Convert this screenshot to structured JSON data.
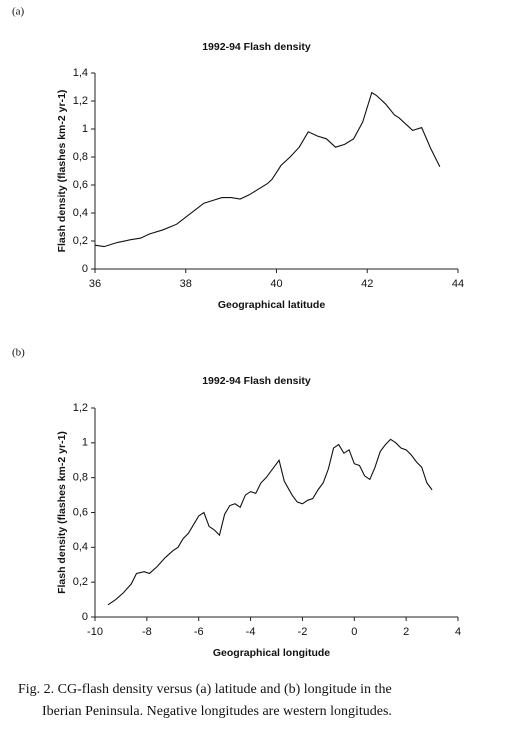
{
  "chart_data": [
    {
      "type": "line",
      "panel_label": "(a)",
      "title": "1992-94  Flash density",
      "xlabel": "Geographical latitude",
      "ylabel": "Flash density (flashes km-2 yr-1)",
      "xlim": [
        36,
        44
      ],
      "xticks": [
        36,
        38,
        40,
        42,
        44
      ],
      "ylim": [
        0,
        1.4
      ],
      "yticks": [
        0,
        {
          "value": 0.2,
          "label": "0,2"
        },
        {
          "value": 0.4,
          "label": "0,4"
        },
        {
          "value": 0.6,
          "label": "0,6"
        },
        {
          "value": 0.8,
          "label": "0,8"
        },
        1,
        {
          "value": 1.2,
          "label": "1,2"
        },
        {
          "value": 1.4,
          "label": "1,4"
        }
      ],
      "grid": false,
      "series": [
        {
          "color": "#111111",
          "x": [
            36,
            36.2,
            36.5,
            36.8,
            37,
            37.2,
            37.5,
            37.8,
            38,
            38.2,
            38.4,
            38.6,
            38.8,
            39,
            39.2,
            39.4,
            39.6,
            39.8,
            39.9,
            40.1,
            40.3,
            40.5,
            40.7,
            40.9,
            41.1,
            41.3,
            41.5,
            41.7,
            41.9,
            42.1,
            42.2,
            42.4,
            42.6,
            42.7,
            42.9,
            43,
            43.2,
            43.4,
            43.6
          ],
          "values": [
            0.17,
            0.16,
            0.19,
            0.21,
            0.22,
            0.25,
            0.28,
            0.32,
            0.37,
            0.42,
            0.47,
            0.49,
            0.51,
            0.51,
            0.5,
            0.53,
            0.57,
            0.61,
            0.64,
            0.74,
            0.8,
            0.87,
            0.98,
            0.95,
            0.93,
            0.87,
            0.89,
            0.93,
            1.05,
            1.26,
            1.24,
            1.18,
            1.1,
            1.08,
            1.02,
            0.99,
            1.01,
            0.86,
            0.73
          ]
        }
      ]
    },
    {
      "type": "line",
      "panel_label": "(b)",
      "title": "1992-94  Flash density",
      "xlabel": "Geographical longitude",
      "ylabel": "Flash density (flashes km-2 yr-1)",
      "xlim": [
        -10,
        4
      ],
      "xticks": [
        -10,
        -8,
        -6,
        -4,
        -2,
        0,
        2,
        4
      ],
      "ylim": [
        0,
        1.2
      ],
      "yticks": [
        0,
        {
          "value": 0.2,
          "label": "0,2"
        },
        {
          "value": 0.4,
          "label": "0,4"
        },
        {
          "value": 0.6,
          "label": "0,6"
        },
        {
          "value": 0.8,
          "label": "0,8"
        },
        1,
        {
          "value": 1.2,
          "label": "1,2"
        }
      ],
      "grid": false,
      "series": [
        {
          "color": "#111111",
          "x": [
            -9.5,
            -9.2,
            -8.9,
            -8.6,
            -8.4,
            -8.1,
            -7.9,
            -7.6,
            -7.3,
            -7.0,
            -6.8,
            -6.6,
            -6.4,
            -6.2,
            -6.0,
            -5.8,
            -5.6,
            -5.4,
            -5.2,
            -5.0,
            -4.8,
            -4.6,
            -4.4,
            -4.2,
            -4.0,
            -3.8,
            -3.6,
            -3.4,
            -3.1,
            -2.9,
            -2.7,
            -2.4,
            -2.2,
            -2.0,
            -1.8,
            -1.6,
            -1.4,
            -1.2,
            -1.0,
            -0.8,
            -0.6,
            -0.4,
            -0.2,
            0,
            0.2,
            0.4,
            0.6,
            0.8,
            1.0,
            1.2,
            1.4,
            1.6,
            1.8,
            2.0,
            2.2,
            2.4,
            2.6,
            2.8,
            3.0
          ],
          "values": [
            0.07,
            0.1,
            0.14,
            0.19,
            0.25,
            0.26,
            0.25,
            0.29,
            0.34,
            0.38,
            0.4,
            0.45,
            0.48,
            0.53,
            0.58,
            0.6,
            0.52,
            0.5,
            0.47,
            0.59,
            0.64,
            0.65,
            0.63,
            0.7,
            0.72,
            0.71,
            0.77,
            0.8,
            0.86,
            0.9,
            0.78,
            0.7,
            0.66,
            0.65,
            0.67,
            0.68,
            0.73,
            0.77,
            0.85,
            0.97,
            0.99,
            0.94,
            0.96,
            0.88,
            0.87,
            0.81,
            0.79,
            0.86,
            0.95,
            0.99,
            1.02,
            1.0,
            0.97,
            0.96,
            0.93,
            0.89,
            0.86,
            0.77,
            0.73
          ]
        }
      ]
    }
  ],
  "caption": [
    "Fig. 2.  CG-flash density versus (a) latitude and (b) longitude in the",
    "Iberian Peninsula.  Negative longitudes are western longitudes."
  ]
}
